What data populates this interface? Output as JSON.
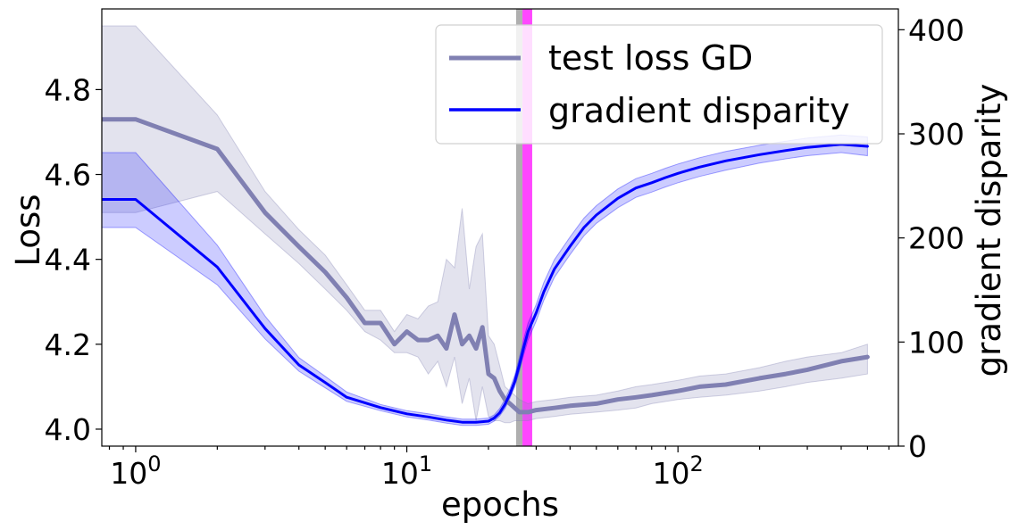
{
  "chart_data": {
    "type": "line",
    "title": "",
    "xlabel": "epochs",
    "ylabel": "Loss",
    "y2label": "gradient disparity",
    "xscale": "log",
    "xlim": [
      0.75,
      650
    ],
    "ylim": [
      3.96,
      4.99
    ],
    "y2lim": [
      0,
      420
    ],
    "xticks": [
      {
        "value": 1,
        "base": "10",
        "exp": "0"
      },
      {
        "value": 10,
        "base": "10",
        "exp": "1"
      },
      {
        "value": 100,
        "base": "10",
        "exp": "2"
      }
    ],
    "yticks": [
      {
        "value": 4.0,
        "label": "4.0"
      },
      {
        "value": 4.2,
        "label": "4.2"
      },
      {
        "value": 4.4,
        "label": "4.4"
      },
      {
        "value": 4.6,
        "label": "4.6"
      },
      {
        "value": 4.8,
        "label": "4.8"
      }
    ],
    "y2ticks": [
      {
        "value": 0,
        "label": "0"
      },
      {
        "value": 100,
        "label": "100"
      },
      {
        "value": 200,
        "label": "200"
      },
      {
        "value": 300,
        "label": "300"
      },
      {
        "value": 400,
        "label": "400"
      }
    ],
    "legend": {
      "position": "top-right",
      "entries": [
        "test loss GD",
        "gradient disparity"
      ]
    },
    "colors": {
      "loss": "#8080b2",
      "loss_band": "#8080b2",
      "disparity": "#0000ff",
      "disparity_band": "#0000ff",
      "grey_marker": "#a6a6a6",
      "magenta_marker": "#ff33ff"
    },
    "vertical_bands": [
      {
        "name": "grey-band",
        "x": [
          25.3,
          26.7
        ],
        "color": "#a6a6a6"
      },
      {
        "name": "magenta-band",
        "x": [
          26.7,
          29.0
        ],
        "color": "#ff33ff"
      }
    ],
    "series": [
      {
        "name": "test loss GD",
        "axis": "left",
        "x": [
          0.75,
          1,
          2,
          3,
          4,
          5,
          6,
          7,
          8,
          9,
          10,
          11,
          12,
          13,
          14,
          15,
          16,
          17,
          18,
          19,
          20,
          21,
          22,
          23,
          24,
          25,
          26,
          28,
          30,
          35,
          40,
          50,
          60,
          70,
          80,
          100,
          120,
          150,
          200,
          250,
          300,
          400,
          500
        ],
        "values": [
          4.73,
          4.73,
          4.66,
          4.51,
          4.43,
          4.37,
          4.31,
          4.25,
          4.25,
          4.2,
          4.23,
          4.21,
          4.21,
          4.22,
          4.19,
          4.27,
          4.2,
          4.22,
          4.19,
          4.24,
          4.13,
          4.12,
          4.09,
          4.07,
          4.06,
          4.05,
          4.04,
          4.04,
          4.045,
          4.05,
          4.055,
          4.06,
          4.07,
          4.075,
          4.08,
          4.09,
          4.1,
          4.105,
          4.12,
          4.13,
          4.14,
          4.16,
          4.17
        ],
        "lower": [
          4.51,
          4.51,
          4.56,
          4.46,
          4.39,
          4.33,
          4.28,
          4.23,
          4.21,
          4.18,
          4.18,
          4.17,
          4.13,
          4.16,
          4.1,
          4.17,
          4.06,
          4.12,
          4.02,
          4.1,
          4.03,
          4.02,
          4.02,
          4.015,
          4.015,
          4.02,
          4.02,
          4.02,
          4.025,
          4.03,
          4.035,
          4.04,
          4.045,
          4.05,
          4.06,
          4.07,
          4.075,
          4.08,
          4.09,
          4.1,
          4.11,
          4.12,
          4.13
        ],
        "upper": [
          4.95,
          4.95,
          4.74,
          4.56,
          4.47,
          4.41,
          4.34,
          4.28,
          4.28,
          4.23,
          4.27,
          4.26,
          4.29,
          4.3,
          4.4,
          4.38,
          4.52,
          4.33,
          4.43,
          4.46,
          4.22,
          4.2,
          4.15,
          4.1,
          4.09,
          4.08,
          4.07,
          4.06,
          4.065,
          4.07,
          4.075,
          4.08,
          4.09,
          4.1,
          4.105,
          4.115,
          4.125,
          4.13,
          4.145,
          4.16,
          4.17,
          4.18,
          4.2
        ]
      },
      {
        "name": "gradient disparity",
        "axis": "right",
        "x": [
          0.75,
          1,
          2,
          3,
          4,
          5,
          6,
          8,
          10,
          12,
          14,
          16,
          18,
          20,
          21,
          22,
          23,
          24,
          25,
          26,
          27,
          28,
          30,
          32,
          35,
          40,
          45,
          50,
          60,
          70,
          80,
          90,
          100,
          120,
          150,
          200,
          250,
          300,
          400,
          500
        ],
        "values": [
          237,
          237,
          172,
          113,
          78,
          61,
          47,
          37,
          31,
          28,
          25,
          23,
          23,
          24,
          27,
          32,
          40,
          50,
          62,
          78,
          95,
          110,
          128,
          148,
          170,
          192,
          210,
          222,
          238,
          248,
          253,
          258,
          262,
          268,
          274,
          280,
          284,
          287,
          290,
          288
        ],
        "lower": [
          210,
          210,
          155,
          103,
          72,
          56,
          43,
          34,
          28,
          25,
          22,
          20,
          20,
          21,
          24,
          29,
          36,
          46,
          57,
          72,
          88,
          102,
          120,
          140,
          162,
          184,
          202,
          214,
          229,
          239,
          244,
          249,
          253,
          259,
          265,
          272,
          276,
          279,
          282,
          279
        ],
        "upper": [
          282,
          282,
          193,
          125,
          85,
          67,
          52,
          40,
          34,
          31,
          28,
          26,
          26,
          27,
          30,
          36,
          45,
          55,
          68,
          85,
          103,
          118,
          136,
          157,
          179,
          201,
          219,
          231,
          247,
          257,
          262,
          267,
          271,
          277,
          283,
          289,
          293,
          296,
          299,
          297
        ]
      }
    ]
  }
}
